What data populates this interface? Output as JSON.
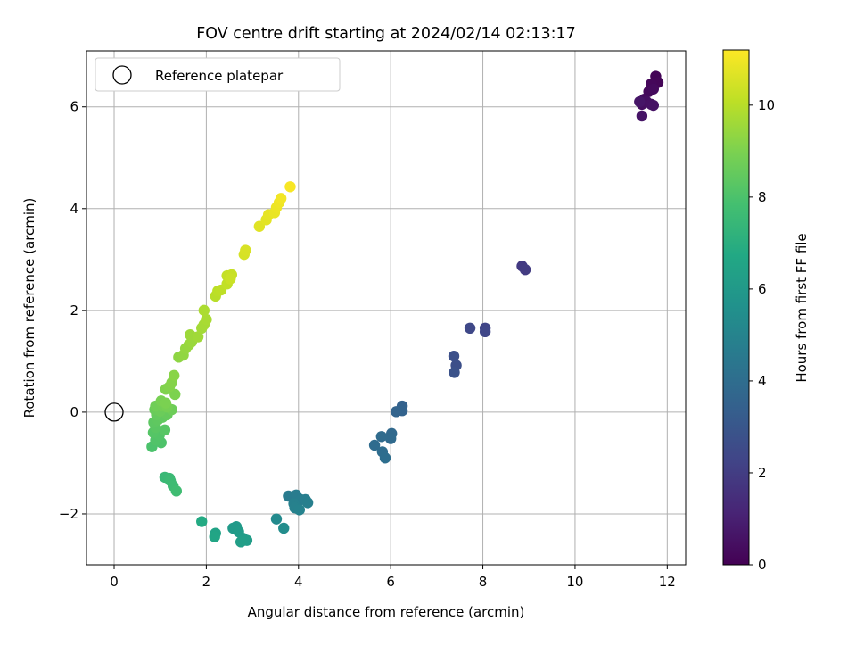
{
  "chart_data": {
    "type": "scatter",
    "title": "FOV centre drift starting at 2024/02/14 02:13:17",
    "xlabel": "Angular distance from reference (arcmin)",
    "ylabel": "Rotation from reference (arcmin)",
    "xlim": [
      -0.6,
      12.4
    ],
    "ylim": [
      -3.0,
      7.1
    ],
    "xticks": [
      0,
      2,
      4,
      6,
      8,
      10,
      12
    ],
    "yticks": [
      -2,
      0,
      2,
      4,
      6
    ],
    "xtick_labels": [
      "0",
      "2",
      "4",
      "6",
      "8",
      "10",
      "12"
    ],
    "ytick_labels": [
      "−2",
      "0",
      "2",
      "4",
      "6"
    ],
    "grid": true,
    "legend": {
      "position": "top-left",
      "entries": [
        "Reference platepar"
      ]
    },
    "reference_point": {
      "x": 0,
      "y": 0,
      "marker": "open-circle"
    },
    "colorbar": {
      "label": "Hours from first FF file",
      "range": [
        0,
        11.2
      ],
      "ticks": [
        0,
        2,
        4,
        6,
        8,
        10
      ],
      "tick_labels": [
        "0",
        "2",
        "4",
        "6",
        "8",
        "10"
      ],
      "colormap": "viridis"
    },
    "points": [
      {
        "x": 11.75,
        "y": 6.6,
        "c": 0.1
      },
      {
        "x": 11.8,
        "y": 6.48,
        "c": 0.15
      },
      {
        "x": 11.65,
        "y": 6.45,
        "c": 0.2
      },
      {
        "x": 11.6,
        "y": 6.3,
        "c": 0.25
      },
      {
        "x": 11.7,
        "y": 6.35,
        "c": 0.3
      },
      {
        "x": 11.5,
        "y": 6.15,
        "c": 0.35
      },
      {
        "x": 11.45,
        "y": 6.05,
        "c": 0.4
      },
      {
        "x": 11.55,
        "y": 6.1,
        "c": 0.45
      },
      {
        "x": 11.65,
        "y": 6.05,
        "c": 0.5
      },
      {
        "x": 11.7,
        "y": 6.03,
        "c": 0.55
      },
      {
        "x": 11.45,
        "y": 5.82,
        "c": 0.6
      },
      {
        "x": 11.4,
        "y": 6.1,
        "c": 0.65
      },
      {
        "x": 8.85,
        "y": 2.87,
        "c": 1.9
      },
      {
        "x": 8.92,
        "y": 2.8,
        "c": 1.95
      },
      {
        "x": 8.05,
        "y": 1.65,
        "c": 2.3
      },
      {
        "x": 8.05,
        "y": 1.58,
        "c": 2.35
      },
      {
        "x": 7.72,
        "y": 1.65,
        "c": 2.4
      },
      {
        "x": 7.42,
        "y": 0.92,
        "c": 2.7
      },
      {
        "x": 7.37,
        "y": 1.1,
        "c": 2.75
      },
      {
        "x": 7.38,
        "y": 0.78,
        "c": 2.8
      },
      {
        "x": 6.25,
        "y": 0.12,
        "c": 3.5
      },
      {
        "x": 6.25,
        "y": 0.03,
        "c": 3.55
      },
      {
        "x": 6.12,
        "y": 0.01,
        "c": 3.6
      },
      {
        "x": 6.02,
        "y": -0.42,
        "c": 3.8
      },
      {
        "x": 6.0,
        "y": -0.52,
        "c": 3.85
      },
      {
        "x": 5.8,
        "y": -0.48,
        "c": 3.9
      },
      {
        "x": 5.65,
        "y": -0.65,
        "c": 3.95
      },
      {
        "x": 5.82,
        "y": -0.78,
        "c": 4.0
      },
      {
        "x": 5.88,
        "y": -0.9,
        "c": 4.05
      },
      {
        "x": 3.78,
        "y": -1.65,
        "c": 4.6
      },
      {
        "x": 3.95,
        "y": -1.63,
        "c": 4.65
      },
      {
        "x": 4.05,
        "y": -1.72,
        "c": 4.7
      },
      {
        "x": 4.15,
        "y": -1.72,
        "c": 4.75
      },
      {
        "x": 4.2,
        "y": -1.78,
        "c": 4.8
      },
      {
        "x": 3.9,
        "y": -1.8,
        "c": 4.85
      },
      {
        "x": 3.92,
        "y": -1.88,
        "c": 4.9
      },
      {
        "x": 4.02,
        "y": -1.92,
        "c": 4.95
      },
      {
        "x": 3.52,
        "y": -2.1,
        "c": 5.3
      },
      {
        "x": 3.68,
        "y": -2.28,
        "c": 5.4
      },
      {
        "x": 2.65,
        "y": -2.25,
        "c": 6.0
      },
      {
        "x": 2.58,
        "y": -2.28,
        "c": 6.05
      },
      {
        "x": 2.7,
        "y": -2.35,
        "c": 6.1
      },
      {
        "x": 2.8,
        "y": -2.48,
        "c": 6.15
      },
      {
        "x": 2.88,
        "y": -2.52,
        "c": 6.2
      },
      {
        "x": 2.75,
        "y": -2.55,
        "c": 6.25
      },
      {
        "x": 2.2,
        "y": -2.38,
        "c": 6.5
      },
      {
        "x": 2.18,
        "y": -2.45,
        "c": 6.55
      },
      {
        "x": 1.9,
        "y": -2.15,
        "c": 6.8
      },
      {
        "x": 1.1,
        "y": -1.28,
        "c": 7.5
      },
      {
        "x": 1.2,
        "y": -1.3,
        "c": 7.55
      },
      {
        "x": 1.22,
        "y": -1.35,
        "c": 7.6
      },
      {
        "x": 1.28,
        "y": -1.45,
        "c": 7.65
      },
      {
        "x": 1.35,
        "y": -1.55,
        "c": 7.7
      },
      {
        "x": 0.82,
        "y": -0.68,
        "c": 8.0
      },
      {
        "x": 1.02,
        "y": -0.6,
        "c": 8.05
      },
      {
        "x": 0.9,
        "y": -0.55,
        "c": 8.1
      },
      {
        "x": 0.98,
        "y": -0.45,
        "c": 8.15
      },
      {
        "x": 0.85,
        "y": -0.4,
        "c": 8.2
      },
      {
        "x": 1.1,
        "y": -0.35,
        "c": 8.25
      },
      {
        "x": 0.9,
        "y": -0.3,
        "c": 8.3
      },
      {
        "x": 0.86,
        "y": -0.2,
        "c": 8.35
      },
      {
        "x": 0.95,
        "y": -0.15,
        "c": 8.4
      },
      {
        "x": 1.05,
        "y": -0.1,
        "c": 8.45
      },
      {
        "x": 0.92,
        "y": -0.05,
        "c": 8.5
      },
      {
        "x": 1.15,
        "y": -0.05,
        "c": 8.55
      },
      {
        "x": 0.88,
        "y": 0.05,
        "c": 8.6
      },
      {
        "x": 1.0,
        "y": 0.02,
        "c": 8.65
      },
      {
        "x": 1.25,
        "y": 0.05,
        "c": 8.7
      },
      {
        "x": 0.9,
        "y": 0.12,
        "c": 8.75
      },
      {
        "x": 1.05,
        "y": 0.12,
        "c": 8.8
      },
      {
        "x": 1.15,
        "y": 0.1,
        "c": 8.85
      },
      {
        "x": 1.02,
        "y": 0.22,
        "c": 8.9
      },
      {
        "x": 1.12,
        "y": 0.18,
        "c": 8.95
      },
      {
        "x": 1.32,
        "y": 0.35,
        "c": 9.0
      },
      {
        "x": 1.12,
        "y": 0.45,
        "c": 9.05
      },
      {
        "x": 1.2,
        "y": 0.5,
        "c": 9.1
      },
      {
        "x": 1.25,
        "y": 0.58,
        "c": 9.15
      },
      {
        "x": 1.3,
        "y": 0.72,
        "c": 9.2
      },
      {
        "x": 1.4,
        "y": 1.08,
        "c": 9.3
      },
      {
        "x": 1.5,
        "y": 1.12,
        "c": 9.35
      },
      {
        "x": 1.55,
        "y": 1.25,
        "c": 9.4
      },
      {
        "x": 1.62,
        "y": 1.32,
        "c": 9.45
      },
      {
        "x": 1.68,
        "y": 1.38,
        "c": 9.5
      },
      {
        "x": 1.65,
        "y": 1.52,
        "c": 9.55
      },
      {
        "x": 1.82,
        "y": 1.48,
        "c": 9.6
      },
      {
        "x": 1.9,
        "y": 1.65,
        "c": 9.65
      },
      {
        "x": 1.95,
        "y": 1.72,
        "c": 9.7
      },
      {
        "x": 2.0,
        "y": 1.82,
        "c": 9.75
      },
      {
        "x": 1.95,
        "y": 2.0,
        "c": 9.8
      },
      {
        "x": 2.2,
        "y": 2.28,
        "c": 10.0
      },
      {
        "x": 2.25,
        "y": 2.38,
        "c": 10.05
      },
      {
        "x": 2.32,
        "y": 2.4,
        "c": 10.1
      },
      {
        "x": 2.45,
        "y": 2.52,
        "c": 10.15
      },
      {
        "x": 2.45,
        "y": 2.68,
        "c": 10.2
      },
      {
        "x": 2.55,
        "y": 2.7,
        "c": 10.25
      },
      {
        "x": 2.52,
        "y": 2.62,
        "c": 10.3
      },
      {
        "x": 2.82,
        "y": 3.1,
        "c": 10.5
      },
      {
        "x": 2.85,
        "y": 3.18,
        "c": 10.55
      },
      {
        "x": 3.15,
        "y": 3.65,
        "c": 10.7
      },
      {
        "x": 3.3,
        "y": 3.78,
        "c": 10.75
      },
      {
        "x": 3.35,
        "y": 3.88,
        "c": 10.8
      },
      {
        "x": 3.48,
        "y": 3.92,
        "c": 10.85
      },
      {
        "x": 3.52,
        "y": 4.02,
        "c": 10.9
      },
      {
        "x": 3.58,
        "y": 4.12,
        "c": 10.95
      },
      {
        "x": 3.62,
        "y": 4.2,
        "c": 11.0
      },
      {
        "x": 3.82,
        "y": 4.43,
        "c": 11.1
      }
    ]
  }
}
